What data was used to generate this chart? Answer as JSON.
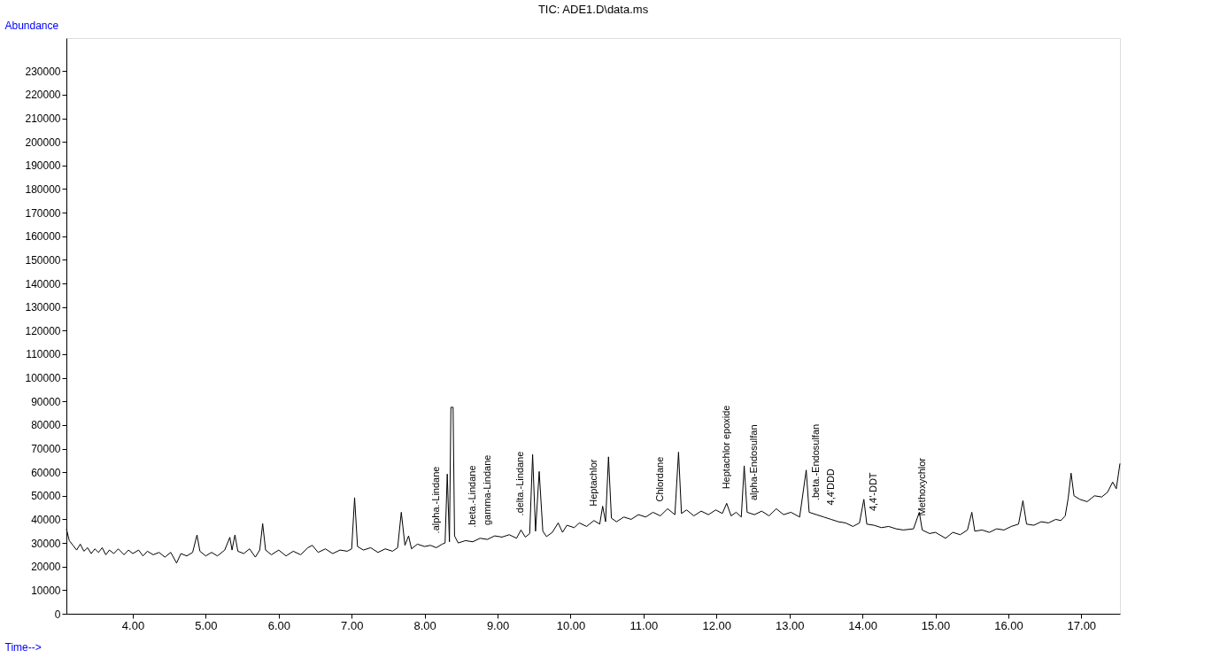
{
  "chart_data": {
    "type": "line",
    "title": "TIC: ADE1.D\\data.ms",
    "xlabel": "Time-->",
    "ylabel": "Abundance",
    "x": [
      3.09,
      3.13,
      3.18,
      3.23,
      3.28,
      3.33,
      3.38,
      3.43,
      3.48,
      3.53,
      3.58,
      3.63,
      3.68,
      3.74,
      3.8,
      3.88,
      3.94,
      4.0,
      4.08,
      4.14,
      4.2,
      4.28,
      4.36,
      4.44,
      4.52,
      4.6,
      4.66,
      4.74,
      4.82,
      4.88,
      4.92,
      5.0,
      5.08,
      5.16,
      5.26,
      5.33,
      5.36,
      5.4,
      5.44,
      5.52,
      5.6,
      5.68,
      5.74,
      5.78,
      5.82,
      5.9,
      6.0,
      6.1,
      6.2,
      6.3,
      6.4,
      6.46,
      6.54,
      6.64,
      6.74,
      6.84,
      6.94,
      7.0,
      7.04,
      7.08,
      7.16,
      7.26,
      7.36,
      7.46,
      7.56,
      7.63,
      7.68,
      7.73,
      7.78,
      7.82,
      7.9,
      8.0,
      8.08,
      8.16,
      8.24,
      8.28,
      8.31,
      8.34,
      8.36,
      8.39,
      8.41,
      8.46,
      8.56,
      8.66,
      8.76,
      8.86,
      8.96,
      9.06,
      9.16,
      9.26,
      9.32,
      9.38,
      9.44,
      9.48,
      9.52,
      9.57,
      9.62,
      9.67,
      9.75,
      9.83,
      9.89,
      9.95,
      10.05,
      10.12,
      10.22,
      10.32,
      10.4,
      10.44,
      10.48,
      10.52,
      10.56,
      10.63,
      10.73,
      10.83,
      10.93,
      11.03,
      11.13,
      11.23,
      11.33,
      11.43,
      11.48,
      11.52,
      11.59,
      11.69,
      11.79,
      11.89,
      11.99,
      12.08,
      12.14,
      12.2,
      12.27,
      12.34,
      12.38,
      12.42,
      12.52,
      12.62,
      12.72,
      12.82,
      12.92,
      13.02,
      13.14,
      13.23,
      13.27,
      13.37,
      13.47,
      13.57,
      13.67,
      13.77,
      13.87,
      13.96,
      14.02,
      14.06,
      14.16,
      14.26,
      14.36,
      14.46,
      14.56,
      14.7,
      14.78,
      14.82,
      14.92,
      15.0,
      15.14,
      15.24,
      15.34,
      15.44,
      15.5,
      15.54,
      15.64,
      15.74,
      15.84,
      15.94,
      16.04,
      16.14,
      16.2,
      16.25,
      16.35,
      16.45,
      16.55,
      16.65,
      16.72,
      16.78,
      16.82,
      16.86,
      16.9,
      16.98,
      17.08,
      17.18,
      17.28,
      17.36,
      17.43,
      17.48,
      17.53
    ],
    "series": [
      {
        "color": "#000000",
        "values": [
          36000,
          31000,
          29000,
          27000,
          29500,
          26500,
          28000,
          25500,
          27500,
          26000,
          28000,
          25000,
          27000,
          25500,
          27500,
          25000,
          27000,
          25500,
          27000,
          24500,
          26500,
          25000,
          26000,
          24000,
          26000,
          21500,
          25500,
          24500,
          26000,
          33400,
          26500,
          24500,
          26000,
          24500,
          27000,
          32400,
          27000,
          33400,
          26500,
          25500,
          27500,
          24000,
          27000,
          38200,
          27000,
          25000,
          27000,
          24500,
          26500,
          25000,
          28000,
          29000,
          26000,
          27500,
          25500,
          27000,
          26500,
          27500,
          49200,
          28500,
          27000,
          28000,
          26000,
          27500,
          26500,
          28000,
          43000,
          29000,
          33000,
          27500,
          29500,
          28500,
          29000,
          28000,
          29500,
          30000,
          59200,
          30500,
          87500,
          87500,
          33000,
          30000,
          31000,
          30500,
          32000,
          31500,
          33000,
          32500,
          33500,
          32000,
          35500,
          32500,
          34000,
          67500,
          35000,
          60300,
          35000,
          32700,
          34500,
          38500,
          34500,
          37500,
          36500,
          38500,
          37000,
          39500,
          38000,
          45600,
          39000,
          66500,
          40500,
          39000,
          41000,
          40000,
          42000,
          41000,
          43000,
          41500,
          44500,
          42000,
          68500,
          42500,
          44000,
          41500,
          43500,
          42000,
          44000,
          42500,
          46800,
          41500,
          43000,
          41000,
          62700,
          43000,
          42000,
          43500,
          41500,
          44500,
          42000,
          43000,
          41000,
          60900,
          43000,
          42000,
          41000,
          40000,
          39000,
          38500,
          37000,
          38500,
          48500,
          38000,
          37500,
          36500,
          37000,
          36000,
          35500,
          36000,
          43000,
          35500,
          34000,
          34500,
          32000,
          34500,
          33500,
          35500,
          43000,
          35000,
          35500,
          34500,
          36000,
          35500,
          37000,
          38000,
          47900,
          38000,
          37500,
          39000,
          38500,
          40000,
          39500,
          41500,
          48900,
          59600,
          50000,
          48500,
          47500,
          50000,
          49500,
          51500,
          55800,
          53000,
          63700
        ]
      }
    ],
    "xlim": [
      3.09,
      17.53
    ],
    "xticks": [
      {
        "value": 4,
        "label": "4.00"
      },
      {
        "value": 5,
        "label": "5.00"
      },
      {
        "value": 6,
        "label": "6.00"
      },
      {
        "value": 7,
        "label": "7.00"
      },
      {
        "value": 8,
        "label": "8.00"
      },
      {
        "value": 9,
        "label": "9.00"
      },
      {
        "value": 10,
        "label": "10.00"
      },
      {
        "value": 11,
        "label": "11.00"
      },
      {
        "value": 12,
        "label": "12.00"
      },
      {
        "value": 13,
        "label": "13.00"
      },
      {
        "value": 14,
        "label": "14.00"
      },
      {
        "value": 15,
        "label": "15.00"
      },
      {
        "value": 16,
        "label": "16.00"
      },
      {
        "value": 17,
        "label": "17.00"
      }
    ],
    "ylim": [
      0,
      244000
    ],
    "yticks": [
      0,
      10000,
      20000,
      30000,
      40000,
      50000,
      60000,
      70000,
      80000,
      90000,
      100000,
      110000,
      120000,
      130000,
      140000,
      150000,
      160000,
      170000,
      180000,
      190000,
      200000,
      210000,
      220000,
      230000
    ],
    "grid": false,
    "annotations": [
      {
        "text": ".alpha.-Lindane",
        "x": 8.16,
        "y": 28000
      },
      {
        "text": ".beta.-Lindane",
        "x": 8.66,
        "y": 30500
      },
      {
        "text": "gamma-Lindane",
        "x": 8.86,
        "y": 31500
      },
      {
        "text": ".delta.-Lindane",
        "x": 9.32,
        "y": 35500
      },
      {
        "text": "Heptachlor",
        "x": 10.32,
        "y": 39500
      },
      {
        "text": "Chlordane",
        "x": 11.23,
        "y": 41500
      },
      {
        "text": "Heptachlor epoxide",
        "x": 12.14,
        "y": 46800
      },
      {
        "text": "alpha-Endosulfan",
        "x": 12.52,
        "y": 42000
      },
      {
        "text": ".beta.-Endosulfan",
        "x": 13.37,
        "y": 42000
      },
      {
        "text": "4,4'DDD",
        "x": 13.57,
        "y": 40000
      },
      {
        "text": "4,4'-DDT",
        "x": 14.16,
        "y": 37500
      },
      {
        "text": "Methoxychlor",
        "x": 14.82,
        "y": 35500
      }
    ]
  }
}
